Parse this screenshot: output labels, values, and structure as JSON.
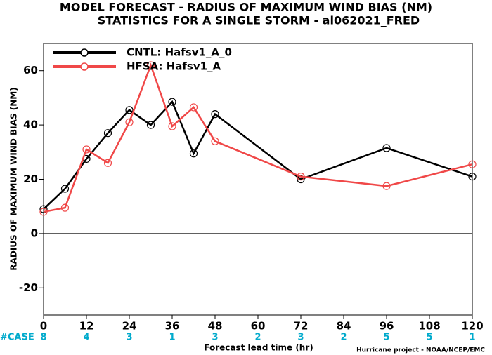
{
  "chart_data": {
    "type": "line",
    "title": "MODEL FORECAST - RADIUS OF MAXIMUM WIND BIAS (NM)",
    "subtitle": "STATISTICS FOR A SINGLE STORM - al062021_FRED",
    "xlabel": "Forecast lead time (hr)",
    "ylabel": "RADIUS OF MAXIMUM WIND BIAS (NM)",
    "footer": "Hurricane project - NOAA/NCEP/EMC",
    "case_label": "#CASE",
    "case_counts": [
      "8",
      "4",
      "3",
      "1",
      "3",
      "2",
      "3",
      "2",
      "5",
      "5",
      "1"
    ],
    "x": [
      0,
      6,
      12,
      18,
      24,
      30,
      36,
      42,
      48,
      72,
      96,
      120
    ],
    "series": [
      {
        "name": "CNTL: Hafsv1_A_0",
        "color": "#000000",
        "values": [
          9,
          16.5,
          27.5,
          37,
          45.5,
          40,
          48.5,
          29.5,
          44,
          20,
          31.5,
          21
        ]
      },
      {
        "name": "HFSA: Hafsv1_A",
        "color": "#f04848",
        "values": [
          8,
          9.5,
          31,
          26,
          41,
          62,
          39.5,
          46.5,
          34,
          21,
          17.5,
          25.5
        ]
      }
    ],
    "xlim": [
      0,
      120
    ],
    "xticks": [
      0,
      12,
      24,
      36,
      48,
      60,
      72,
      84,
      96,
      108,
      120
    ],
    "ylim": [
      -30,
      70
    ],
    "yticks": [
      -20,
      0,
      20,
      40,
      60
    ],
    "legend": "upper left"
  }
}
